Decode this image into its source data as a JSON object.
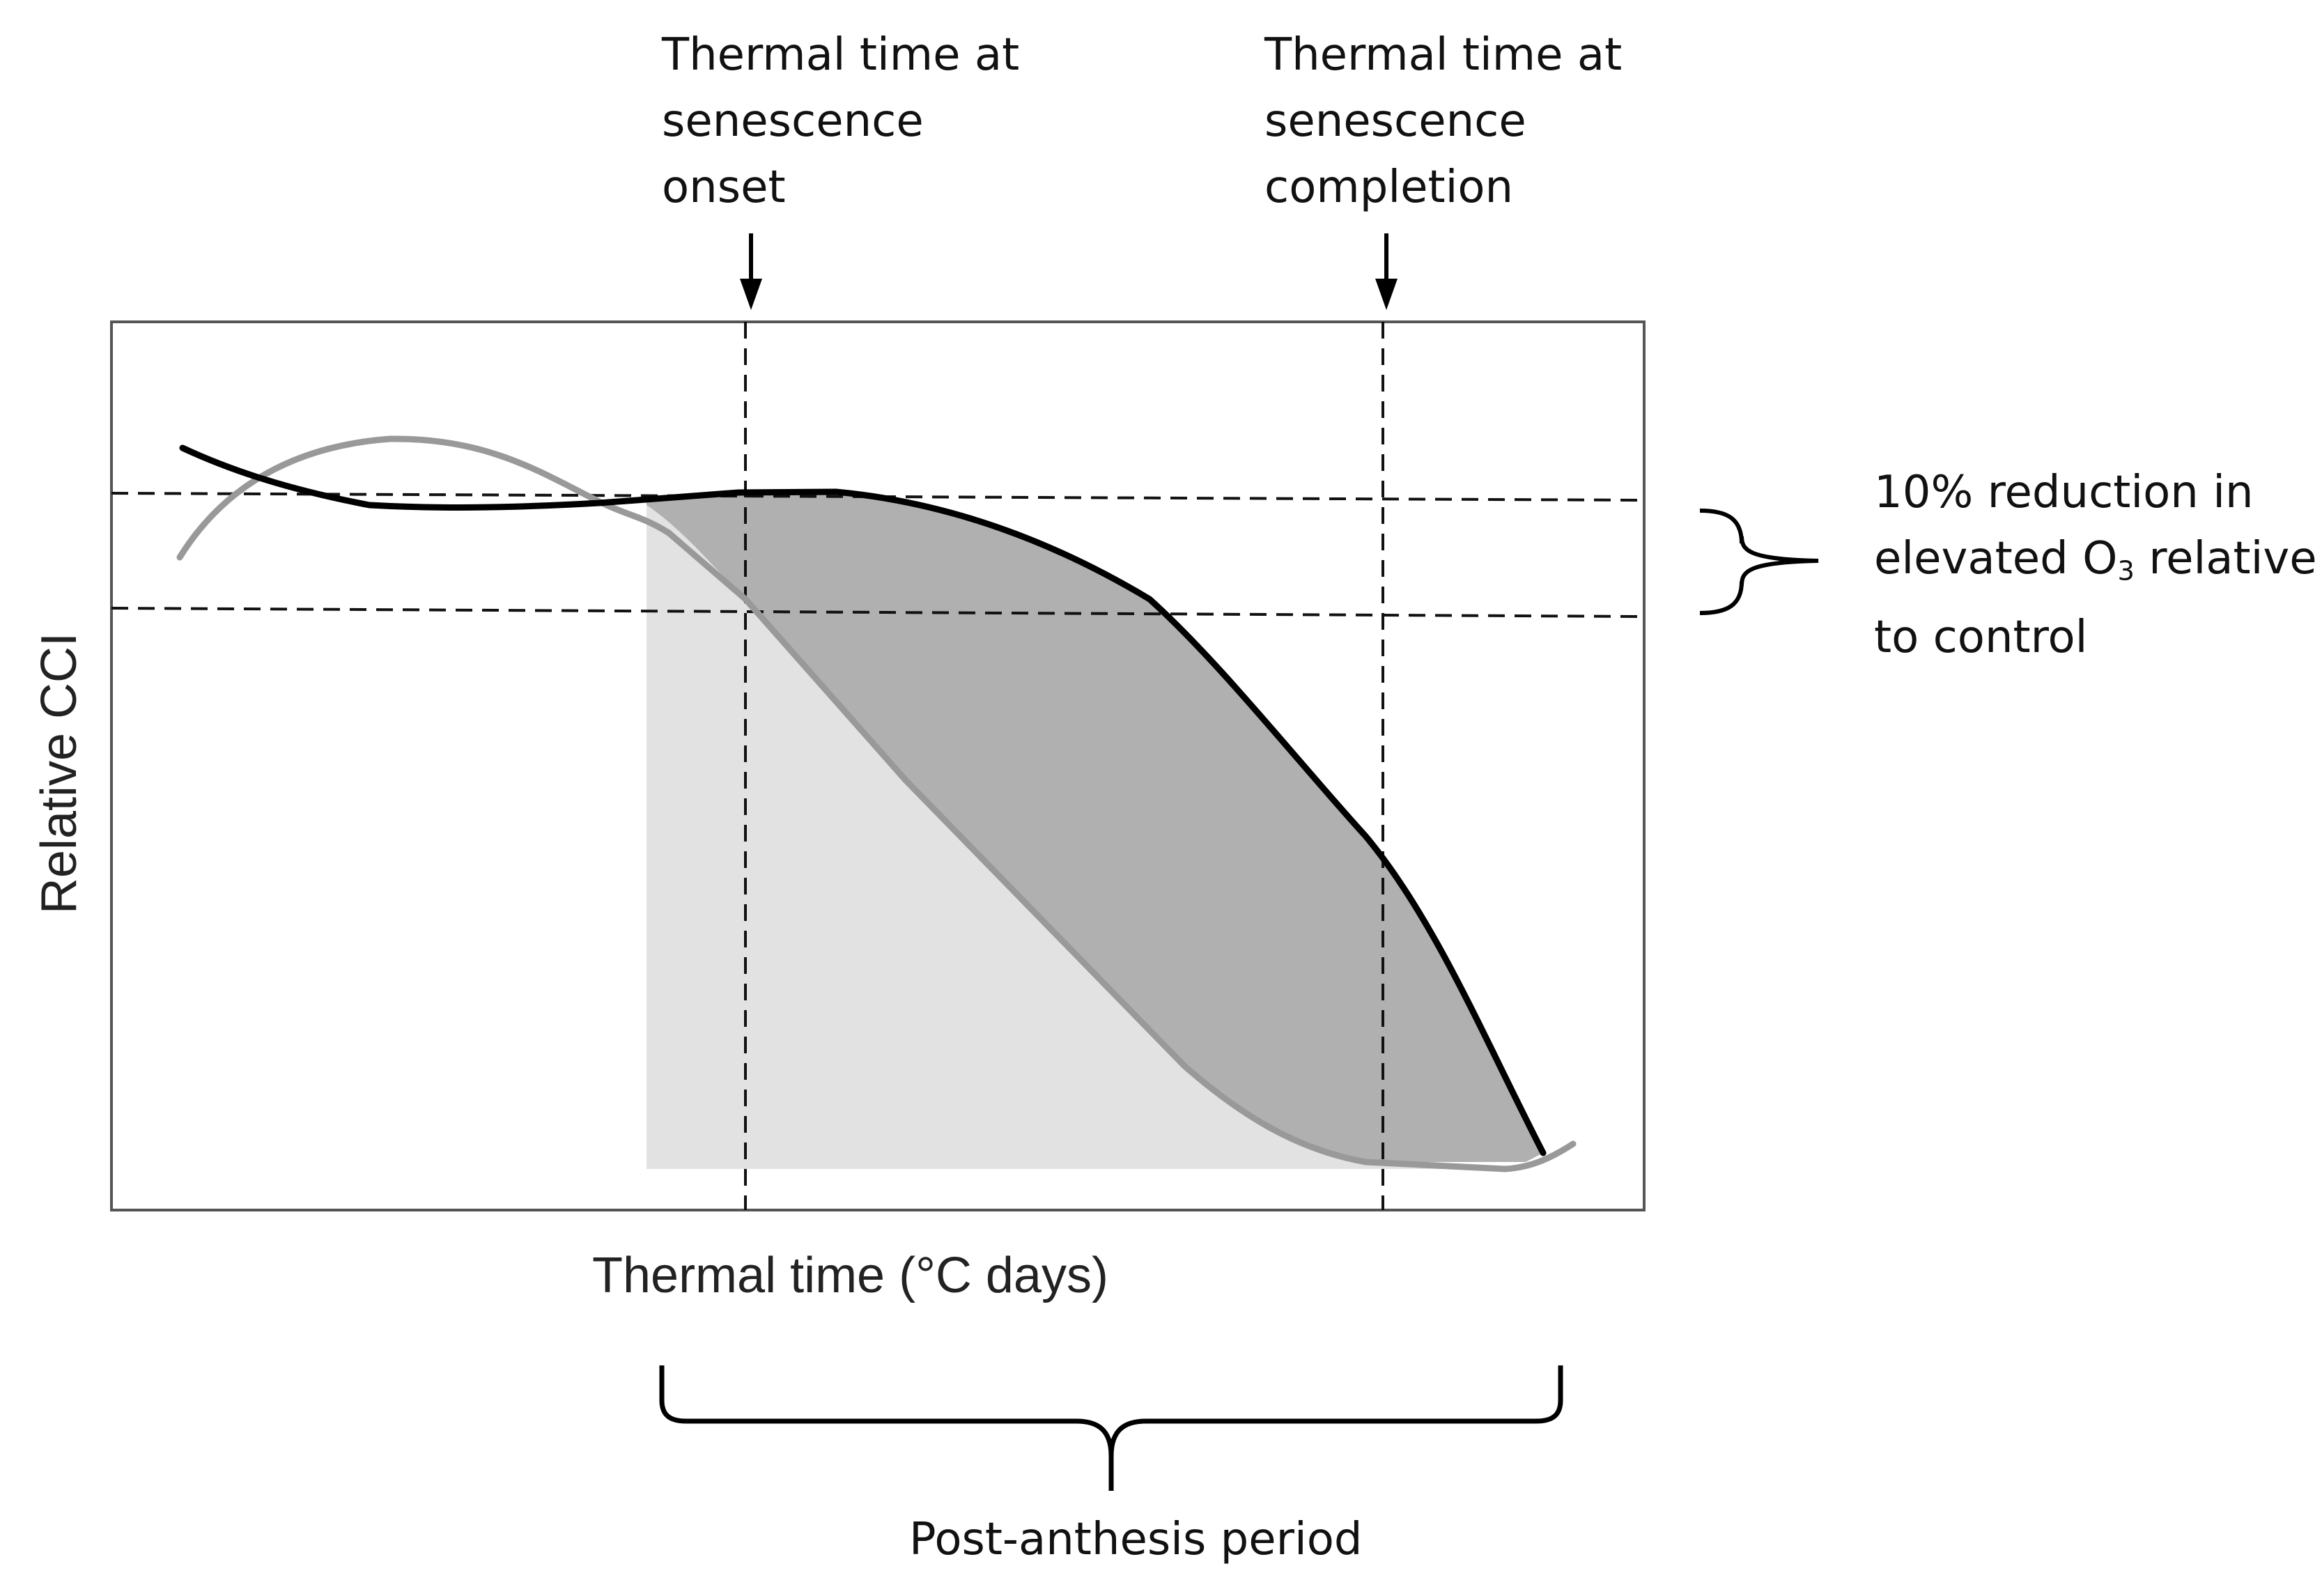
{
  "labels": {
    "onset": "Thermal time at\nsenescence\nonset",
    "completion": "Thermal time at\nsenescence\ncompletion",
    "reduction_prefix": "10% reduction in\nelevated O",
    "reduction_sub": "3",
    "reduction_suffix": " relative\nto control",
    "post_anthesis": "Post-anthesis period",
    "xaxis": "Thermal time (°C days)",
    "yaxis": "Relative CCI"
  },
  "colors": {
    "control_curve": "#000000",
    "elevated_o3_curve": "#999999",
    "light_area": "#e2e2e2",
    "dark_area": "#b0b0b0",
    "frame": "#555555"
  }
}
